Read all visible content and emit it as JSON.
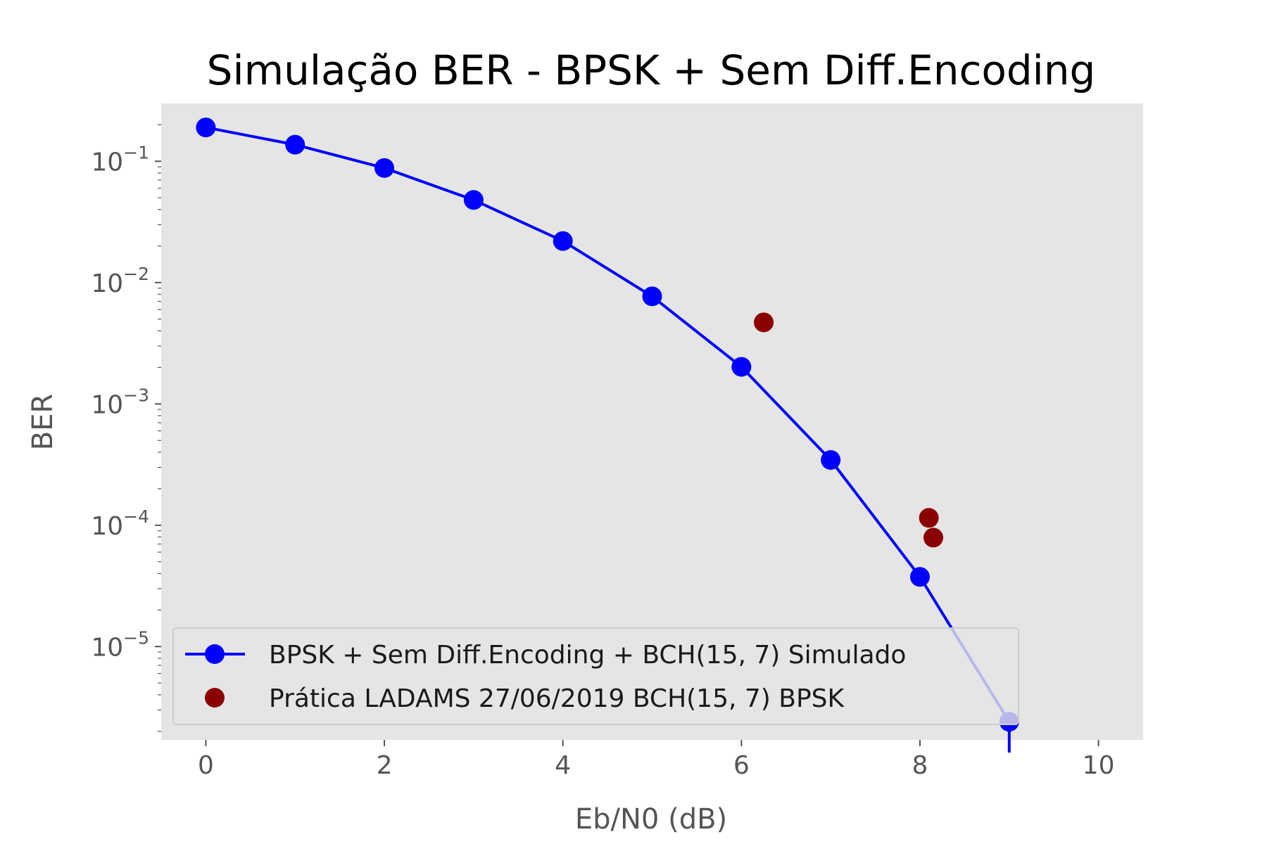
{
  "chart_data": {
    "type": "line",
    "title": "Simulação BER - BPSK + Sem Diff.Encoding",
    "xlabel": "Eb/N0 (dB)",
    "ylabel": "BER",
    "xlim": [
      -0.5,
      10.5
    ],
    "ylim": [
      1.7e-06,
      0.3
    ],
    "yscale": "log",
    "x_ticks": [
      0,
      2,
      4,
      6,
      8,
      10
    ],
    "y_ticks": [
      {
        "value": 0.1,
        "base": "10",
        "exp": "−1"
      },
      {
        "value": 0.01,
        "base": "10",
        "exp": "−2"
      },
      {
        "value": 0.001,
        "base": "10",
        "exp": "−3"
      },
      {
        "value": 0.0001,
        "base": "10",
        "exp": "−4"
      },
      {
        "value": 1e-05,
        "base": "10",
        "exp": "−5"
      }
    ],
    "grid": false,
    "background": "#e5e5e5",
    "legend_position": "lower-left",
    "series": [
      {
        "name": "BPSK + Sem Diff.Encoding + BCH(15, 7) Simulado",
        "kind": "line-marker",
        "color": "#0000ff",
        "x": [
          0,
          1,
          2,
          3,
          4,
          5,
          6,
          7,
          8,
          9
        ],
        "y": [
          0.19,
          0.137,
          0.088,
          0.048,
          0.022,
          0.0077,
          0.00202,
          0.000345,
          3.75e-05,
          2.4e-06
        ]
      },
      {
        "name": "Prática LADAMS 27/06/2019 BCH(15, 7) BPSK",
        "kind": "scatter",
        "color": "#8b0000",
        "x": [
          6.25,
          8.1,
          8.15
        ],
        "y": [
          0.0047,
          0.000115,
          7.9e-05
        ]
      }
    ]
  }
}
